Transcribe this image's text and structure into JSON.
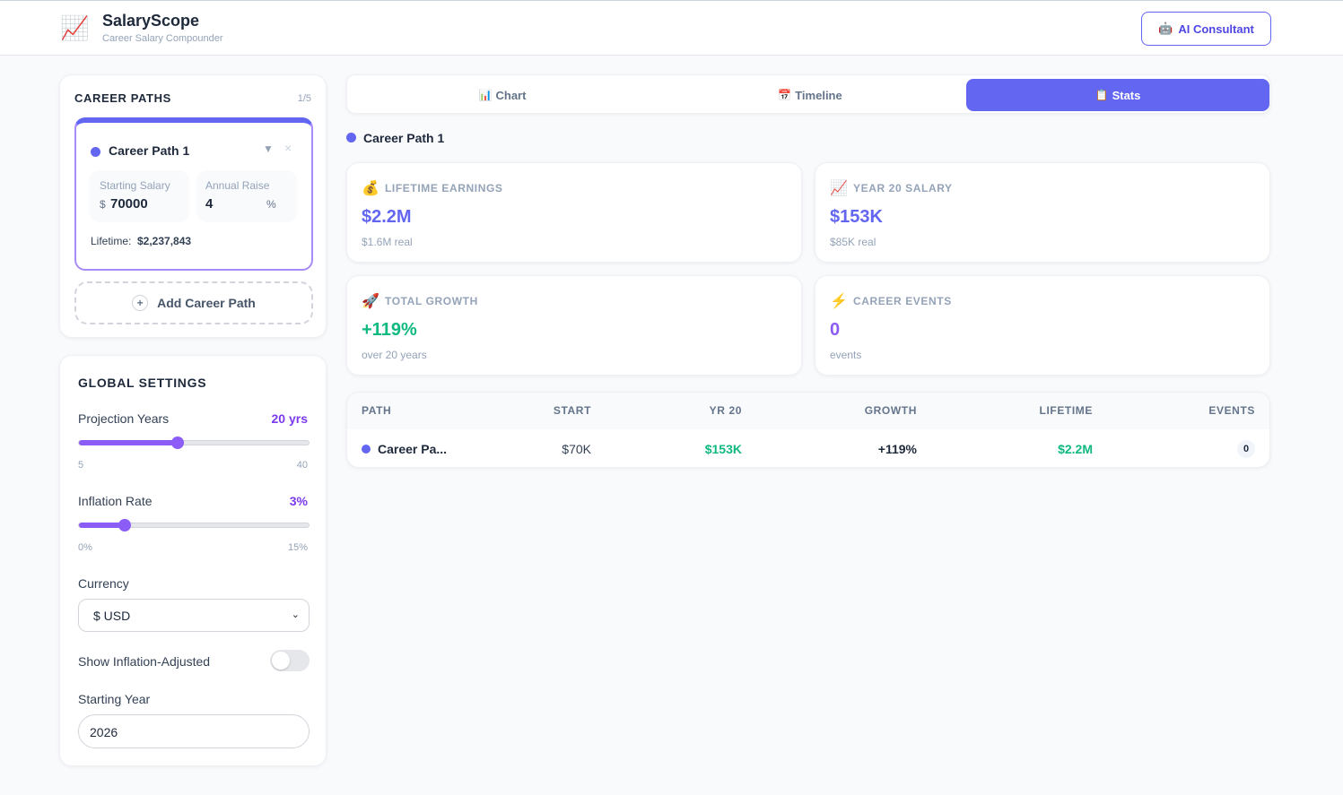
{
  "header": {
    "title": "SalaryScope",
    "subtitle": "Career Salary Compounder",
    "button": "AI Consultant"
  },
  "career_paths": {
    "title": "CAREER PATHS",
    "count": "1/5",
    "paths": [
      {
        "name": "Career Path 1",
        "color": "#6366f1",
        "starting_salary_label": "Starting Salary",
        "currency_symbol": "$",
        "starting_salary": "70000",
        "annual_raise_label": "Annual Raise",
        "annual_raise": "4",
        "percent_sign": "%",
        "lifetime_label": "Lifetime:",
        "lifetime": "$2,237,843"
      }
    ],
    "add_button": "Add Career Path"
  },
  "global_settings": {
    "title": "GLOBAL SETTINGS",
    "projection_years": {
      "label": "Projection Years",
      "value": {
        "value": 20,
        "label": "20 yrs"
      },
      "min": 5,
      "max": 40
    },
    "inflation_rate": {
      "label": "Inflation Rate",
      "value": {
        "value": 3,
        "label": "3%"
      },
      "min": {
        "value": 0,
        "label": "0%"
      },
      "max": {
        "value": 15,
        "label": "15%"
      }
    },
    "currency": {
      "label": "Currency",
      "value": "$ USD"
    },
    "show_inflation_adjusted": {
      "label": "Show Inflation-Adjusted",
      "on": false
    },
    "starting_year": {
      "label": "Starting Year",
      "value": "2026"
    }
  },
  "tabs": {
    "items": [
      "Chart",
      "Timeline",
      "Stats"
    ],
    "active": 2
  },
  "selected_path": "Career Path 1",
  "stats": [
    {
      "label": "LIFETIME EARNINGS",
      "value": "$2.2M",
      "sub": "$1.6M real",
      "color": "#6366f1"
    },
    {
      "label": "YEAR 20 SALARY",
      "value": "$153K",
      "sub": "$85K real",
      "color": "#6366f1"
    },
    {
      "label": "TOTAL GROWTH",
      "value": "+119%",
      "sub": "over 20 years",
      "color": "#10b981"
    },
    {
      "label": "CAREER EVENTS",
      "value": "0",
      "sub": "events",
      "color": "#8b5cf6"
    }
  ],
  "table": {
    "headers": [
      "PATH",
      "START",
      "YR 20",
      "GROWTH",
      "LIFETIME",
      "EVENTS"
    ],
    "rows": [
      [
        "Career Pa...",
        "$70K",
        "$153K",
        "+119%",
        "$2.2M",
        "0"
      ]
    ]
  }
}
